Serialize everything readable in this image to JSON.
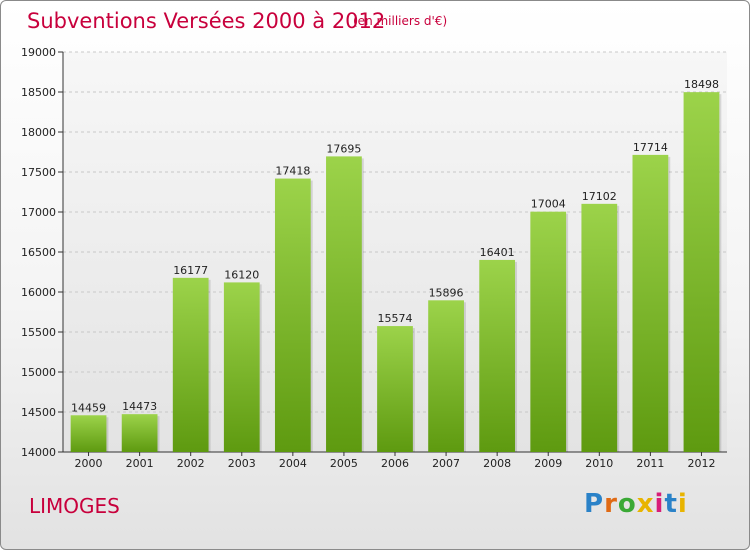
{
  "header": {
    "title": "Subventions Versées 2000 à 2012",
    "subtitle": "(en milliers d'€)"
  },
  "footer": {
    "city": "LIMOGES",
    "logo": [
      "P",
      "r",
      "o",
      "x",
      "i",
      "t",
      "i"
    ]
  },
  "colors": {
    "accent": "#c8003c",
    "bar_top": "#9cd34a",
    "bar_bottom": "#5e9a10"
  },
  "chart_data": {
    "type": "bar",
    "title": "Subventions Versées 2000 à 2012",
    "subtitle": "(en milliers d'€)",
    "categories": [
      "2000",
      "2001",
      "2002",
      "2003",
      "2004",
      "2005",
      "2006",
      "2007",
      "2008",
      "2009",
      "2010",
      "2011",
      "2012"
    ],
    "values": [
      14459,
      14473,
      16177,
      16120,
      17418,
      17695,
      15574,
      15896,
      16401,
      17004,
      17102,
      17714,
      18498
    ],
    "ylim": [
      14000,
      19000
    ],
    "yticks": [
      14000,
      14500,
      15000,
      15500,
      16000,
      16500,
      17000,
      17500,
      18000,
      18500,
      19000
    ],
    "grid": true,
    "data_labels": true
  }
}
